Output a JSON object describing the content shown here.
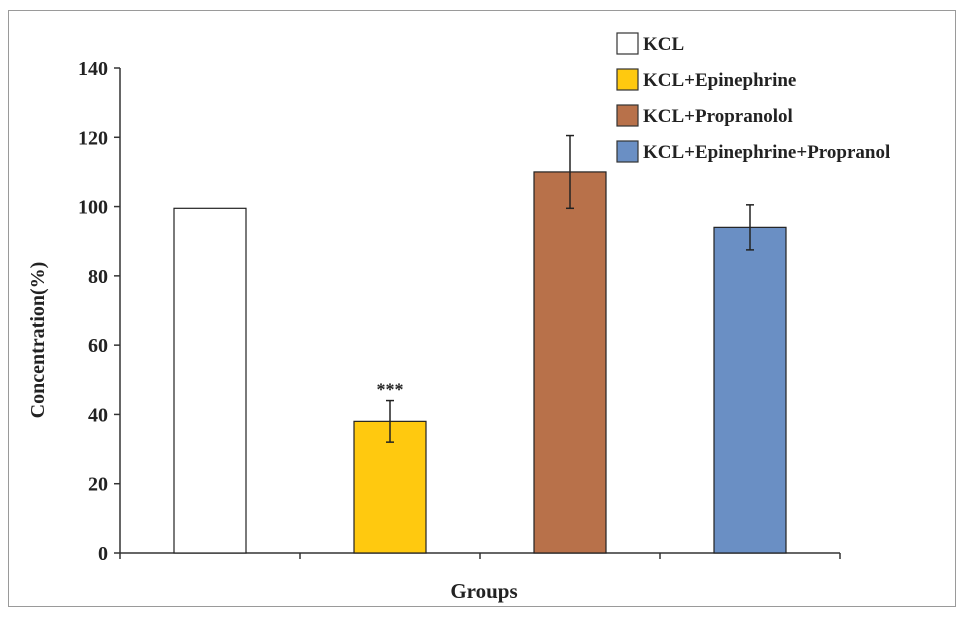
{
  "chart_data": {
    "type": "bar",
    "title": "",
    "xlabel": "Groups",
    "ylabel": "Concentration(%)",
    "ylim": [
      0,
      140
    ],
    "yticks": [
      0,
      20,
      40,
      60,
      80,
      100,
      120,
      140
    ],
    "ytick_labels": [
      "0",
      "20",
      "40",
      "60",
      "80",
      "100",
      "120",
      "140"
    ],
    "grid": false,
    "legend_position": "top-right",
    "series": [
      {
        "name": "KCL",
        "value": 99.5,
        "error": null,
        "color": "#ffffff",
        "annotation": ""
      },
      {
        "name": "KCL+Epinephrine",
        "value": 38,
        "error": 6,
        "color": "#ffc90f",
        "annotation": "***"
      },
      {
        "name": "KCL+Propranolol",
        "value": 110,
        "error": 10.5,
        "color": "#b8714a",
        "annotation": ""
      },
      {
        "name": "KCL+Epinephrine+Propranol",
        "value": 94,
        "error": 6.5,
        "color": "#6a8fc4",
        "annotation": ""
      }
    ]
  }
}
